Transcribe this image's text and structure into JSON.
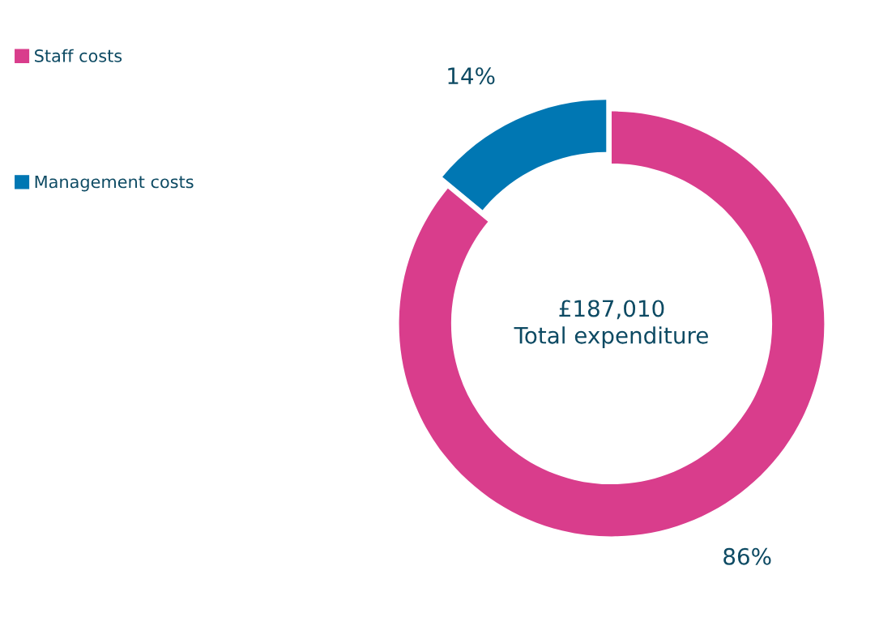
{
  "chart_data": {
    "type": "donut",
    "categories": [
      "Staff costs",
      "Management costs"
    ],
    "values": [
      86,
      14
    ],
    "colors": [
      "#d93d8c",
      "#0077b3"
    ],
    "value_labels": [
      "86%",
      "14%"
    ],
    "annotations": [
      "£187,010\nTotal expenditure"
    ],
    "legend": "top left"
  }
}
